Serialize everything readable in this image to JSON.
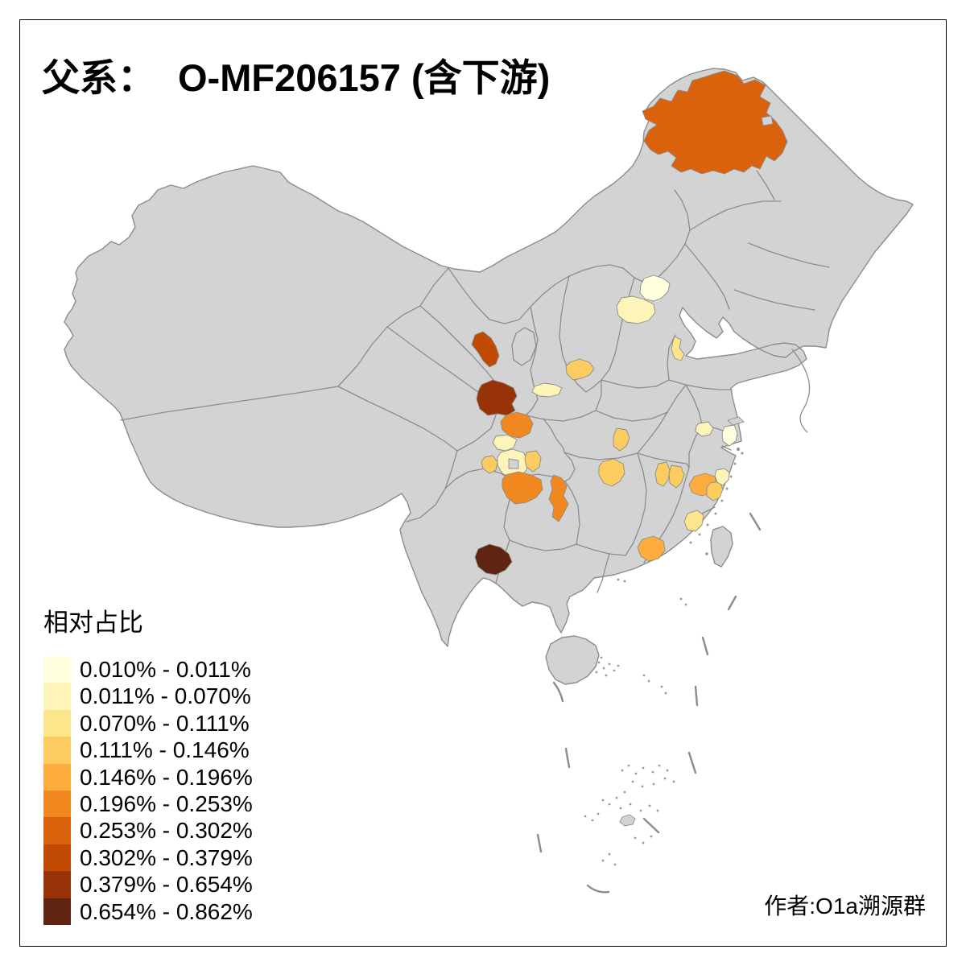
{
  "title": {
    "prefix": "父系：",
    "name": "O-MF206157 (含下游)"
  },
  "attribution": "作者:O1a溯源群",
  "legend": {
    "title": "相对占比",
    "classes": [
      {
        "range": "0.010% - 0.011%",
        "color": "#FFFFDE"
      },
      {
        "range": "0.011% - 0.070%",
        "color": "#FCF4B8"
      },
      {
        "range": "0.070% - 0.111%",
        "color": "#FDE58C"
      },
      {
        "range": "0.111% - 0.146%",
        "color": "#FDCC60"
      },
      {
        "range": "0.146% - 0.196%",
        "color": "#FDAC3E"
      },
      {
        "range": "0.196% - 0.253%",
        "color": "#F1871F"
      },
      {
        "range": "0.253% - 0.302%",
        "color": "#DA620D"
      },
      {
        "range": "0.302% - 0.379%",
        "color": "#C04A04"
      },
      {
        "range": "0.379% - 0.654%",
        "color": "#973306"
      },
      {
        "range": "0.654% - 0.862%",
        "color": "#5F2510"
      }
    ]
  },
  "map": {
    "background": "#FFFFFF",
    "base_color": "#D3D3D3",
    "border_color": "#8C8C8C",
    "frame_color": "#000000",
    "text_color": "#000000",
    "regions": [
      {
        "id": "ne-inner-mongolia",
        "bin": 7
      },
      {
        "id": "beijing",
        "bin": 1
      },
      {
        "id": "hebei-central",
        "bin": 2
      },
      {
        "id": "shandong-west",
        "bin": 3
      },
      {
        "id": "shanxi-south",
        "bin": 4
      },
      {
        "id": "shaanxi-central",
        "bin": 2
      },
      {
        "id": "gansu-north",
        "bin": 8
      },
      {
        "id": "gansu-south",
        "bin": 9
      },
      {
        "id": "shaanxi-south",
        "bin": 6
      },
      {
        "id": "sichuan-north",
        "bin": 2
      },
      {
        "id": "chengdu-area",
        "bin": 2
      },
      {
        "id": "sichuan-west",
        "bin": 4
      },
      {
        "id": "sichuan-northeast",
        "bin": 4
      },
      {
        "id": "sichuan-south",
        "bin": 6
      },
      {
        "id": "chongqing-guizhou",
        "bin": 6
      },
      {
        "id": "hunan-north",
        "bin": 4
      },
      {
        "id": "hubei-northwest",
        "bin": 4
      },
      {
        "id": "jiangxi-north-west",
        "bin": 4
      },
      {
        "id": "jiangxi-north-east",
        "bin": 4
      },
      {
        "id": "zhejiang-central",
        "bin": 5
      },
      {
        "id": "zhejiang-east",
        "bin": 4
      },
      {
        "id": "zhejiang-northeast",
        "bin": 2
      },
      {
        "id": "shanghai",
        "bin": 1
      },
      {
        "id": "jiangsu-south",
        "bin": 2
      },
      {
        "id": "fujian-north",
        "bin": 3
      },
      {
        "id": "guangdong-northeast",
        "bin": 5
      },
      {
        "id": "yunnan-southeast",
        "bin": 10
      }
    ]
  }
}
